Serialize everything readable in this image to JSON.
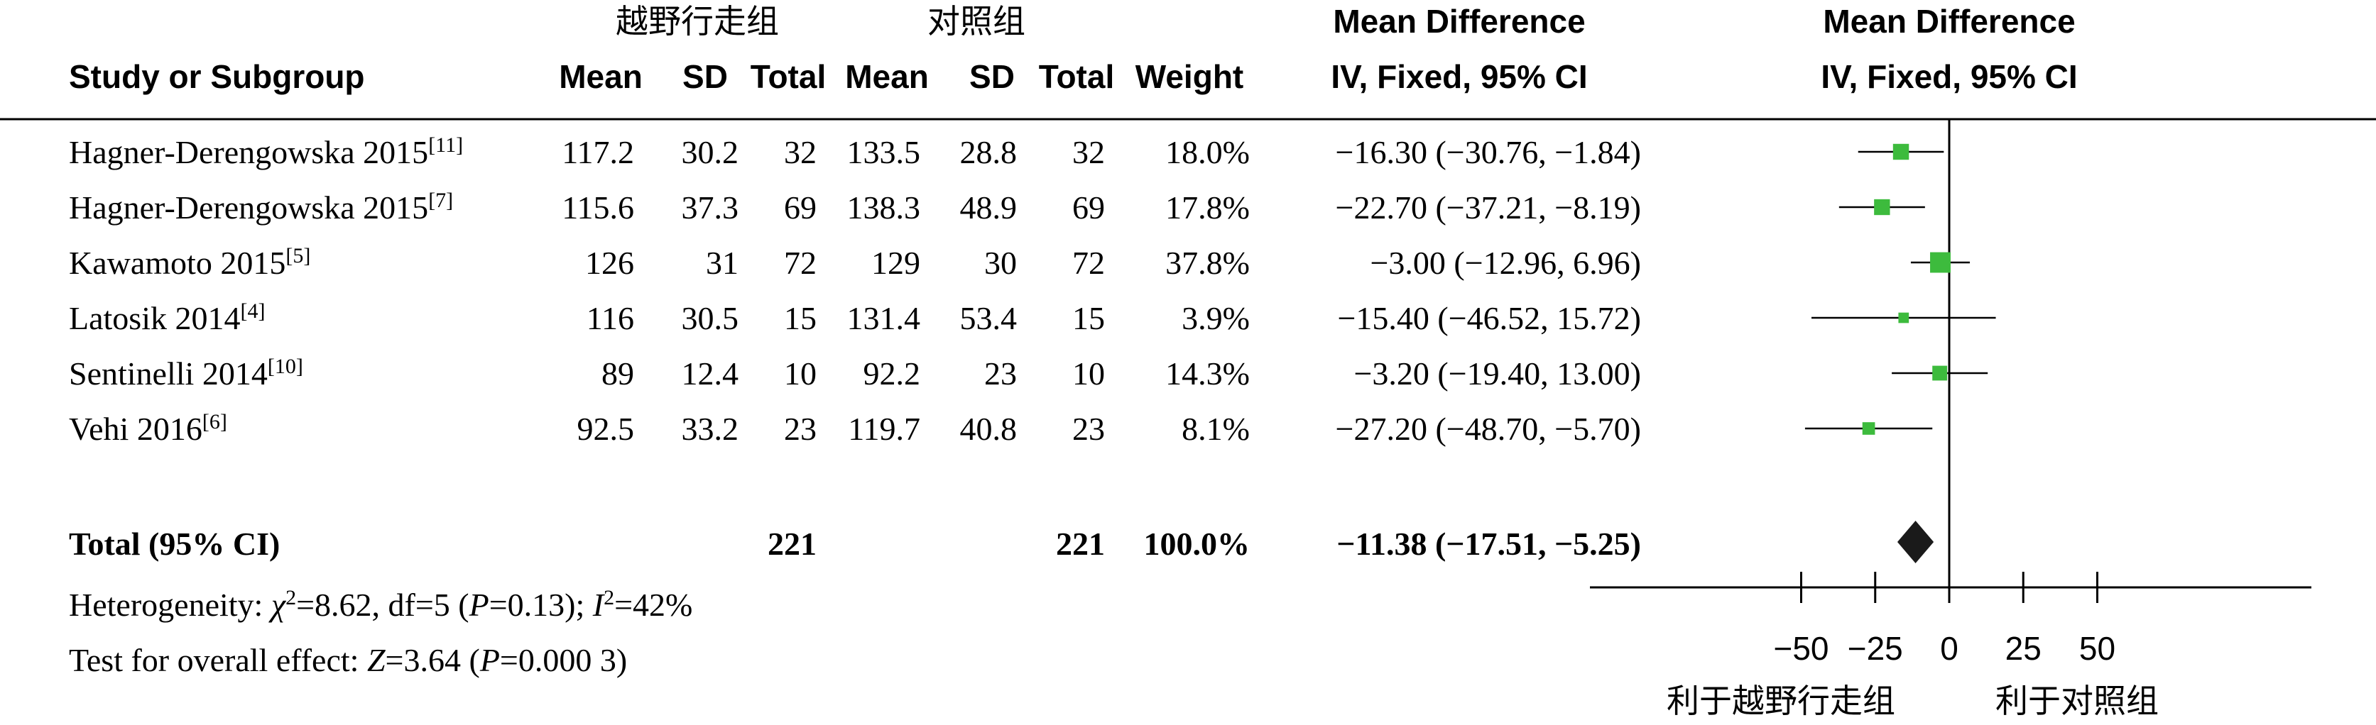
{
  "header": {
    "group_exp": "越野行走组",
    "group_ctrl": "对照组",
    "study_col": "Study or Subgroup",
    "mean": "Mean",
    "sd": "SD",
    "total": "Total",
    "weight": "Weight",
    "md_title": "Mean Difference",
    "md_method": "IV, Fixed, 95% CI",
    "plot_title": "Mean Difference",
    "plot_method": "IV, Fixed, 95% CI"
  },
  "studies": [
    {
      "name": "Hagner-Derengowska 2015",
      "ref": "[11]",
      "e_mean": "117.2",
      "e_sd": "30.2",
      "e_total": "32",
      "c_mean": "133.5",
      "c_sd": "28.8",
      "c_total": "32",
      "weight": "18.0%",
      "ci_text": "−16.30 (−30.76, −1.84)"
    },
    {
      "name": "Hagner-Derengowska 2015",
      "ref": "[7]",
      "e_mean": "115.6",
      "e_sd": "37.3",
      "e_total": "69",
      "c_mean": "138.3",
      "c_sd": "48.9",
      "c_total": "69",
      "weight": "17.8%",
      "ci_text": "−22.70 (−37.21, −8.19)"
    },
    {
      "name": "Kawamoto 2015",
      "ref": "[5]",
      "e_mean": "126",
      "e_sd": "31",
      "e_total": "72",
      "c_mean": "129",
      "c_sd": "30",
      "c_total": "72",
      "weight": "37.8%",
      "ci_text": "−3.00 (−12.96, 6.96)"
    },
    {
      "name": "Latosik 2014",
      "ref": "[4]",
      "e_mean": "116",
      "e_sd": "30.5",
      "e_total": "15",
      "c_mean": "131.4",
      "c_sd": "53.4",
      "c_total": "15",
      "weight": "3.9%",
      "ci_text": "−15.40 (−46.52, 15.72)"
    },
    {
      "name": "Sentinelli 2014",
      "ref": "[10]",
      "e_mean": "89",
      "e_sd": "12.4",
      "e_total": "10",
      "c_mean": "92.2",
      "c_sd": "23",
      "c_total": "10",
      "weight": "14.3%",
      "ci_text": "−3.20 (−19.40, 13.00)"
    },
    {
      "name": "Vehi 2016",
      "ref": "[6]",
      "e_mean": "92.5",
      "e_sd": "33.2",
      "e_total": "23",
      "c_mean": "119.7",
      "c_sd": "40.8",
      "c_total": "23",
      "weight": "8.1%",
      "ci_text": "−27.20 (−48.70, −5.70)"
    }
  ],
  "total": {
    "label": "Total (95% CI)",
    "e_total": "221",
    "c_total": "221",
    "weight": "100.0%",
    "ci_text": "−11.38 (−17.51, −5.25)"
  },
  "heterogeneity": {
    "prefix": "Heterogeneity: ",
    "chi": "χ",
    "chi_sup": "2",
    "chi_val": "=8.62, df=5 (",
    "p": "P",
    "p_val": "=0.13); ",
    "i": "I",
    "i_sup": "2",
    "i_val": "=42%"
  },
  "overall": {
    "prefix": "Test for overall effect: ",
    "z": "Z",
    "z_val": "=3.64 (",
    "p": "P",
    "p_val": "=0.000 3)"
  },
  "axis": {
    "favours_left": "利于越野行走组",
    "favours_right": "利于对照组"
  },
  "chart_data": {
    "type": "forest",
    "xlim": [
      -50,
      50
    ],
    "ticks": [
      -50,
      -25,
      0,
      25,
      50
    ],
    "tick_labels": [
      "−50",
      "−25",
      "0",
      "25",
      "50"
    ],
    "marker_color": "#3dbb3d",
    "summary_color": "#1a1a1a",
    "points": [
      {
        "md": -16.3,
        "lo": -30.76,
        "hi": -1.84,
        "weight": 18.0
      },
      {
        "md": -22.7,
        "lo": -37.21,
        "hi": -8.19,
        "weight": 17.8
      },
      {
        "md": -3.0,
        "lo": -12.96,
        "hi": 6.96,
        "weight": 37.8
      },
      {
        "md": -15.4,
        "lo": -46.52,
        "hi": 15.72,
        "weight": 3.9
      },
      {
        "md": -3.2,
        "lo": -19.4,
        "hi": 13.0,
        "weight": 14.3
      },
      {
        "md": -27.2,
        "lo": -48.7,
        "hi": -5.7,
        "weight": 8.1
      }
    ],
    "summary": {
      "md": -11.38,
      "lo": -17.51,
      "hi": -5.25
    }
  }
}
